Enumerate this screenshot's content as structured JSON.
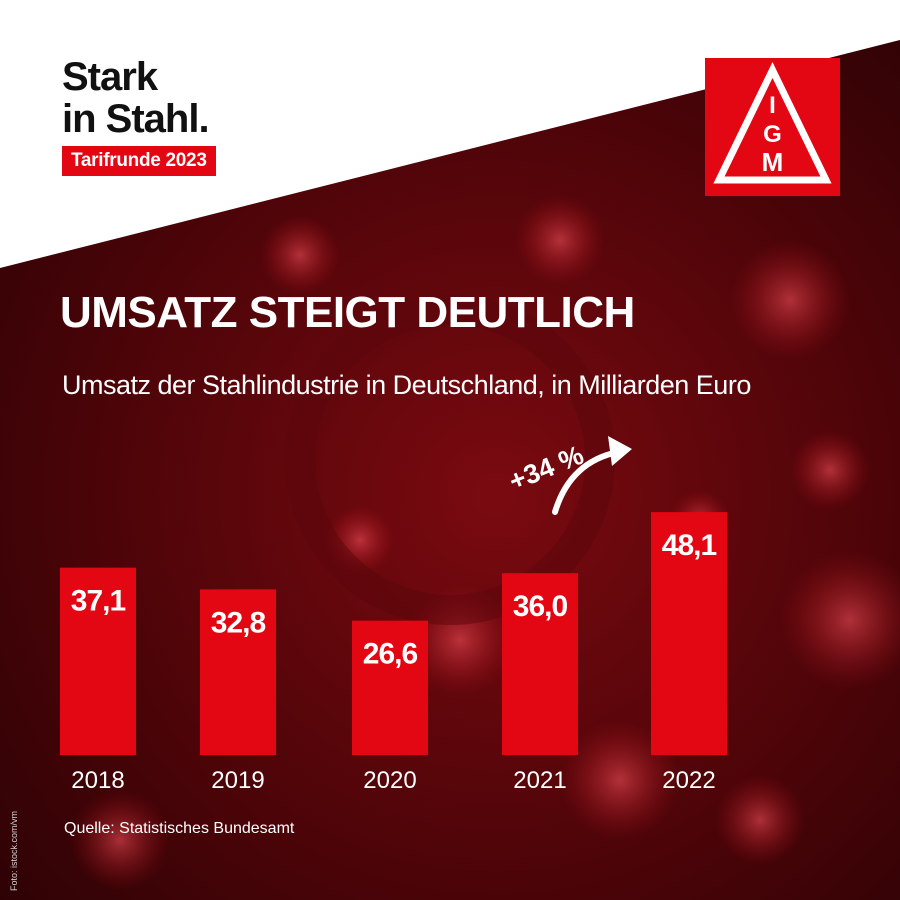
{
  "brand": {
    "line1": "Stark",
    "line2": "in Stahl.",
    "badge": "Tarifrunde 2023"
  },
  "logo": {
    "letters": [
      "I",
      "G",
      "M"
    ]
  },
  "colors": {
    "accent": "#e30613",
    "text": "#ffffff",
    "bar": "#e30613"
  },
  "chart_data": {
    "type": "bar",
    "title": "UMSATZ STEIGT DEUTLICH",
    "subtitle": "Umsatz der Stahlindustrie in Deutschland, in Milliarden Euro",
    "categories": [
      "2018",
      "2019",
      "2020",
      "2021",
      "2022"
    ],
    "values": [
      37.1,
      32.8,
      26.6,
      36.0,
      48.1
    ],
    "value_labels": [
      "37,1",
      "32,8",
      "26,6",
      "36,0",
      "48,1"
    ],
    "annotation": {
      "text": "+34 %",
      "from": "2021",
      "to": "2022"
    },
    "grid": false,
    "legend": "none"
  },
  "source": "Quelle: Statistisches Bundesamt",
  "credit": "Foto: istock.com/vm"
}
